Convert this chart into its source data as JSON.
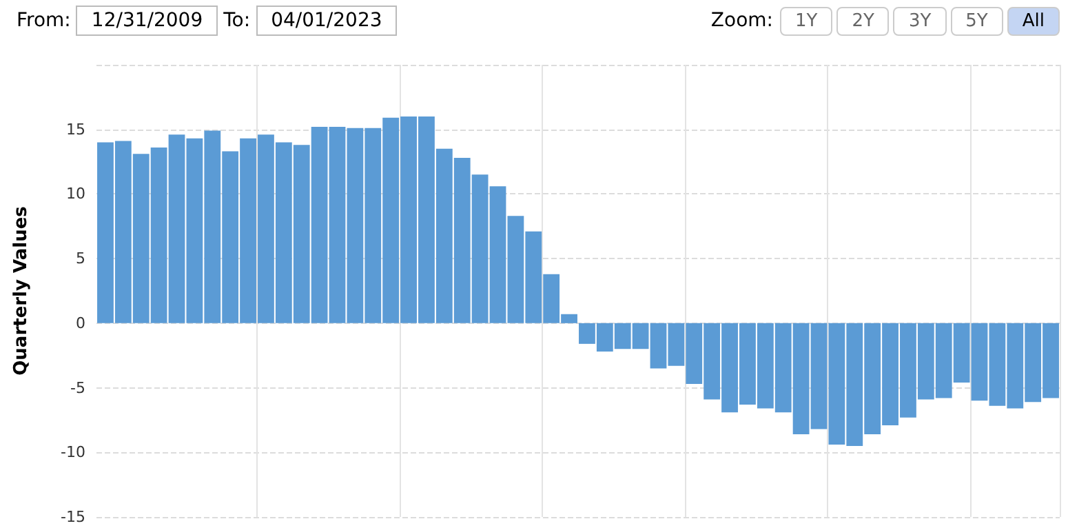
{
  "chart_data": {
    "type": "bar",
    "ylabel": "Quarterly Values",
    "annotations": [
      "From:",
      "12/31/2009",
      "To:",
      "04/01/2023",
      "Zoom:",
      "1Y",
      "2Y",
      "3Y",
      "5Y",
      "All"
    ],
    "categories": [
      null,
      null,
      null,
      null,
      null,
      null,
      null,
      null,
      null,
      null,
      null,
      null,
      null,
      null,
      null,
      null,
      null,
      null,
      null,
      null,
      null,
      null,
      null,
      null,
      null,
      null,
      null,
      null,
      null,
      null,
      null,
      null,
      null,
      null,
      null,
      null,
      null,
      null,
      null,
      null,
      null,
      null,
      null,
      null,
      null,
      null,
      null,
      null,
      null,
      null,
      null,
      null,
      null,
      null
    ],
    "values": [
      14.0,
      14.1,
      13.1,
      13.6,
      14.6,
      14.3,
      14.9,
      13.3,
      14.3,
      14.6,
      14.0,
      13.8,
      15.2,
      15.2,
      15.1,
      15.1,
      15.9,
      16.0,
      16.0,
      13.5,
      12.8,
      11.5,
      10.6,
      8.3,
      7.1,
      3.8,
      0.7,
      -1.6,
      -2.2,
      -2.0,
      -2.0,
      -3.5,
      -3.3,
      -4.7,
      -5.9,
      -6.9,
      -6.3,
      -6.6,
      -6.9,
      -8.6,
      -8.2,
      -9.4,
      -9.5,
      -8.6,
      -7.9,
      -7.3,
      -5.9,
      -5.8,
      -4.6,
      -6.0,
      -6.4,
      -6.6,
      -6.1,
      -5.8
    ],
    "color": "#5b9bd5",
    "ylim": [
      -15,
      20
    ],
    "yticks": [
      -15,
      -10,
      -5,
      0,
      5,
      10,
      15,
      {
        "value": 20,
        "label": null
      }
    ],
    "grid": true
  }
}
